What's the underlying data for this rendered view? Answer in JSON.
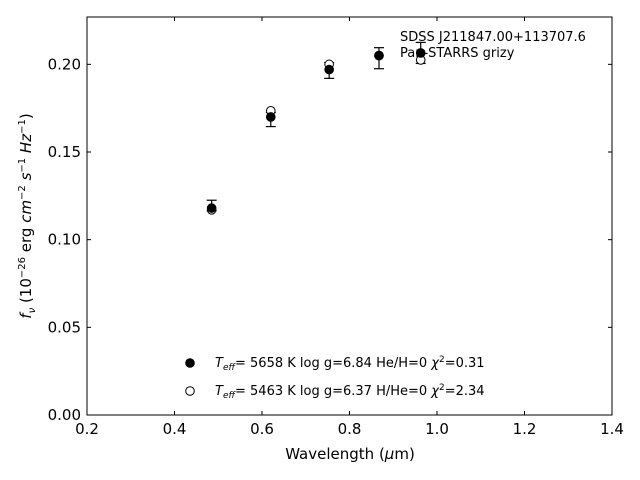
{
  "chart_data": {
    "type": "scatter",
    "xlabel": "Wavelength (μm)",
    "ylabel": "fν (10⁻²⁶ erg cm⁻² s⁻¹ Hz⁻¹)",
    "xlim": [
      0.2,
      1.4
    ],
    "ylim": [
      0.0,
      0.227
    ],
    "x_ticks": [
      0.2,
      0.4,
      0.6,
      0.8,
      1.0,
      1.2,
      1.4
    ],
    "x_tick_labels": [
      "0.2",
      "0.4",
      "0.6",
      "0.8",
      "1.0",
      "1.2",
      "1.4"
    ],
    "y_ticks": [
      0.0,
      0.05,
      0.1,
      0.15,
      0.2
    ],
    "y_tick_labels": [
      "0.00",
      "0.05",
      "0.10",
      "0.15",
      "0.20"
    ],
    "grid": false,
    "annotations": [
      "SDSS J211847.00+113707.6",
      "Pan-STARRS grizy"
    ],
    "observed": {
      "x": [
        0.4849,
        0.6201,
        0.7535,
        0.8674,
        0.9628
      ],
      "y": [
        0.1195,
        0.1685,
        0.1965,
        0.2035,
        0.2065
      ],
      "err": [
        0.003,
        0.004,
        0.0045,
        0.006,
        0.006
      ]
    },
    "series": [
      {
        "marker": "filled-circle",
        "legend": "Teff=  5658 K  log g=6.84  He/H=0  χ²=0.31",
        "x": [
          0.4849,
          0.6201,
          0.7535,
          0.8674,
          0.9628
        ],
        "y": [
          0.118,
          0.17,
          0.197,
          0.205,
          0.2065
        ]
      },
      {
        "marker": "open-circle",
        "legend": "Teff=  5463 K  log g=6.37  H/He=0  χ²=2.34",
        "x": [
          0.4849,
          0.6201,
          0.7535,
          0.8674,
          0.9628
        ],
        "y": [
          0.117,
          0.1735,
          0.2,
          0.205,
          0.2025
        ]
      }
    ],
    "legend_placement": "bottom-left",
    "colors": {
      "marker": "#000000",
      "axes": "#000000",
      "background": "#ffffff"
    }
  }
}
